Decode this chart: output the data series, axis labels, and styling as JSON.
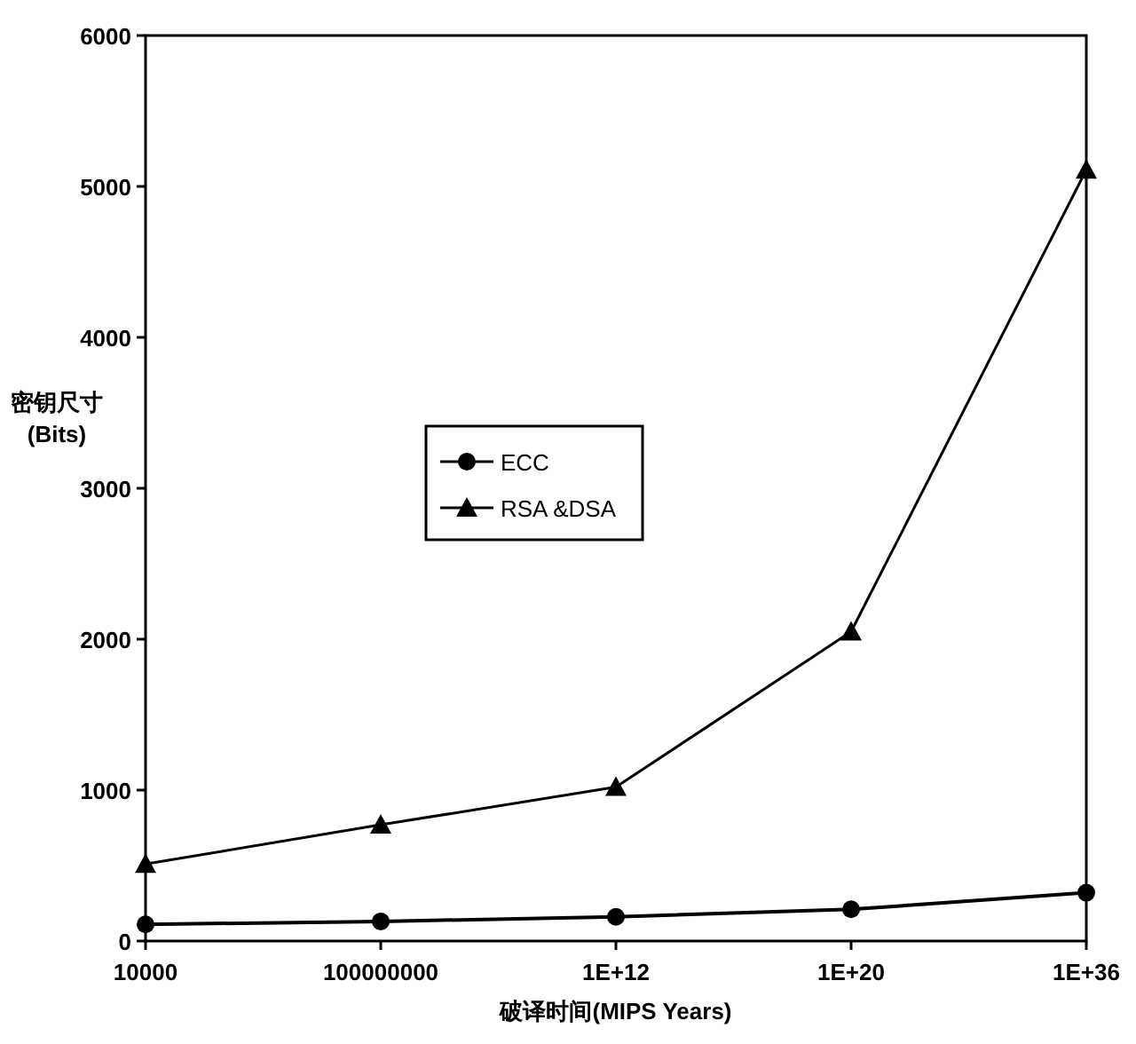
{
  "chart_data": {
    "type": "line",
    "xlabel": "破译时间(MIPS Years)",
    "ylabel": "密钥尺寸 (Bits)",
    "categories": [
      "10000",
      "100000000",
      "1E+12",
      "1E+20",
      "1E+36"
    ],
    "series": [
      {
        "name": "ECC",
        "color": "#000000",
        "marker": "circle",
        "values": [
          110,
          130,
          160,
          210,
          320
        ]
      },
      {
        "name": "RSA &DSA",
        "color": "#000000",
        "marker": "triangle",
        "values": [
          510,
          770,
          1020,
          2050,
          5110
        ]
      }
    ],
    "ylim": [
      0,
      6000
    ],
    "yticks": [
      0,
      1000,
      2000,
      3000,
      4000,
      5000,
      6000
    ],
    "grid": false,
    "legend": "center"
  }
}
